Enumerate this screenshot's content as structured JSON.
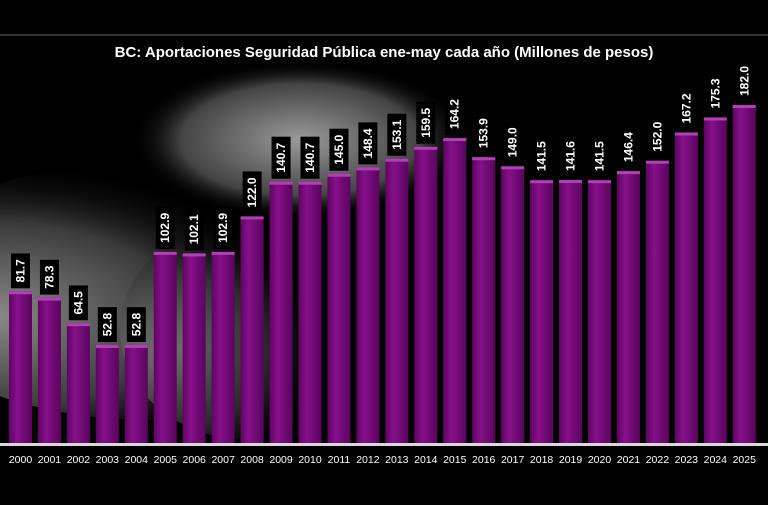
{
  "chart_data": {
    "type": "bar",
    "title": "BC: Aportaciones Seguridad Pública ene-may cada año (Millones de pesos)",
    "xlabel": "",
    "ylabel": "",
    "categories": [
      "2000",
      "2001",
      "2002",
      "2003",
      "2004",
      "2005",
      "2006",
      "2007",
      "2008",
      "2009",
      "2010",
      "2011",
      "2012",
      "2013",
      "2014",
      "2015",
      "2016",
      "2017",
      "2018",
      "2019",
      "2020",
      "2021",
      "2022",
      "2023",
      "2024",
      "2025"
    ],
    "values": [
      81.7,
      78.3,
      64.5,
      52.8,
      52.8,
      102.9,
      102.1,
      102.9,
      122.0,
      140.7,
      140.7,
      145.0,
      148.4,
      153.1,
      159.5,
      164.2,
      153.9,
      149.0,
      141.5,
      141.6,
      141.5,
      146.4,
      152.0,
      167.2,
      175.3,
      182.0
    ],
    "data_labels": [
      "81.7",
      "78.3",
      "64.5",
      "52.8",
      "52.8",
      "102.9",
      "102.1",
      "102.9",
      "122.0",
      "140.7",
      "140.7",
      "145.0",
      "148.4",
      "153.1",
      "159.5",
      "164.2",
      "153.9",
      "149.0",
      "141.5",
      "141.6",
      "141.5",
      "146.4",
      "152.0",
      "167.2",
      "175.3",
      "182.0"
    ],
    "ylim": [
      0,
      182
    ],
    "grid": false,
    "legend": "none",
    "bar_color": "#7a0a7e",
    "background": "black with grayscale photo of a revolver in a hand"
  }
}
